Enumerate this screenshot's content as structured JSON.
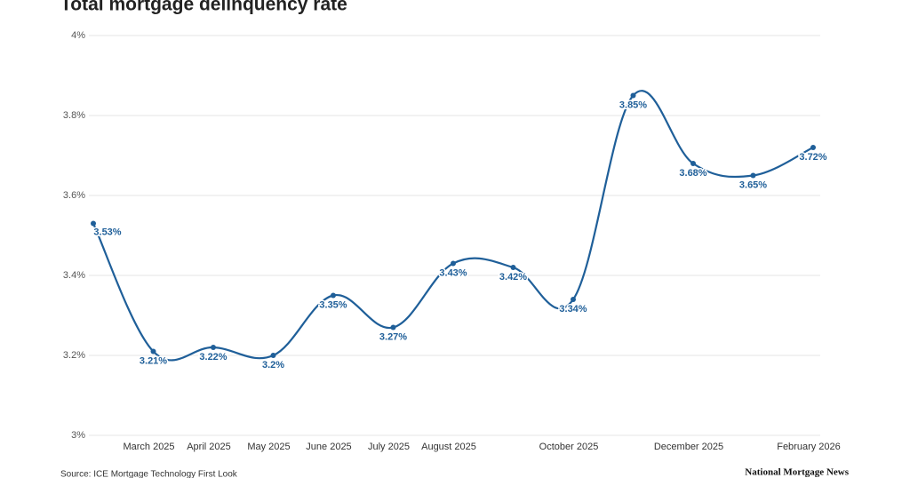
{
  "chart_data": {
    "type": "line",
    "title": "Total mortgage delinquency rate",
    "source": "Source: ICE Mortgage Technology First Look",
    "logo": "National Mortgage News",
    "categories": [
      null,
      "March 2025",
      "April 2025",
      "May 2025",
      "June 2025",
      "July 2025",
      "August 2025",
      null,
      "October 2025",
      null,
      "December 2025",
      null,
      "February 2026"
    ],
    "values": [
      3.53,
      3.21,
      3.22,
      3.2,
      3.35,
      3.27,
      3.43,
      3.42,
      3.34,
      3.85,
      3.68,
      3.65,
      3.72
    ],
    "value_labels": [
      "3.53%",
      "3.21%",
      "3.22%",
      "3.2%",
      "3.35%",
      "3.27%",
      "3.43%",
      "3.42%",
      "3.34%",
      "3.85%",
      "3.68%",
      "3.65%",
      "3.72%"
    ],
    "color": "#1f5f99",
    "ylim": [
      3,
      4
    ],
    "yticks": [
      {
        "value": 3,
        "label": "3%"
      },
      {
        "value": 3.2,
        "label": "3.2%"
      },
      {
        "value": 3.4,
        "label": "3.4%"
      },
      {
        "value": 3.6,
        "label": "3.6%"
      },
      {
        "value": 3.8,
        "label": "3.8%"
      },
      {
        "value": 4,
        "label": "4%"
      }
    ],
    "grid": true
  }
}
